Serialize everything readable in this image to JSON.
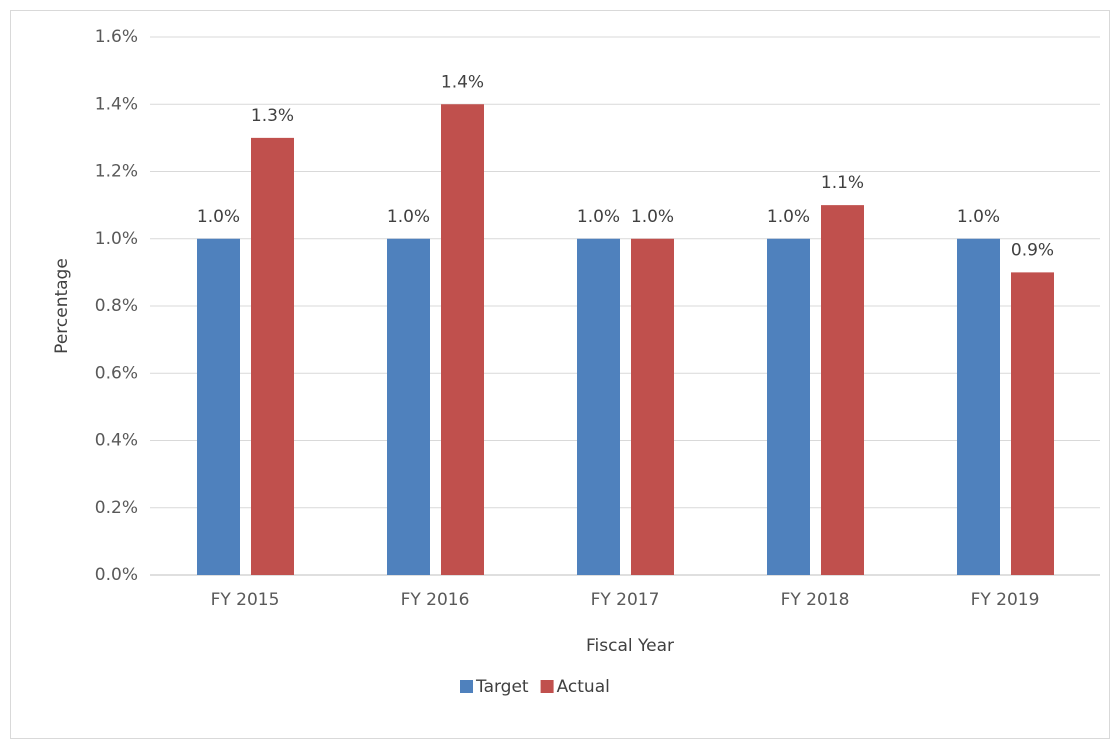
{
  "chart_data": {
    "type": "bar",
    "categories": [
      "FY 2015",
      "FY 2016",
      "FY 2017",
      "FY 2018",
      "FY 2019"
    ],
    "series": [
      {
        "name": "Target",
        "color": "#4f81bd",
        "values": [
          1.0,
          1.0,
          1.0,
          1.0,
          1.0
        ],
        "value_labels": [
          "1.0%",
          "1.0%",
          "1.0%",
          "1.0%",
          "1.0%"
        ]
      },
      {
        "name": "Actual",
        "color": "#c0504d",
        "values": [
          1.3,
          1.4,
          1.0,
          1.1,
          0.9
        ],
        "value_labels": [
          "1.3%",
          "1.4%",
          "1.0%",
          "1.1%",
          "0.9%"
        ]
      }
    ],
    "xlabel": "Fiscal Year",
    "ylabel": "Percentage",
    "ylim": [
      0,
      1.6
    ],
    "yticks": [
      {
        "value": 0,
        "label": "0.0%"
      },
      {
        "value": 0.2,
        "label": "0.2%"
      },
      {
        "value": 0.4,
        "label": "0.4%"
      },
      {
        "value": 0.6,
        "label": "0.6%"
      },
      {
        "value": 0.8,
        "label": "0.8%"
      },
      {
        "value": 1.0,
        "label": "1.0%"
      },
      {
        "value": 1.2,
        "label": "1.2%"
      },
      {
        "value": 1.4,
        "label": "1.4%"
      },
      {
        "value": 1.6,
        "label": "1.6%"
      }
    ],
    "grid": true,
    "legend": "bottom"
  }
}
